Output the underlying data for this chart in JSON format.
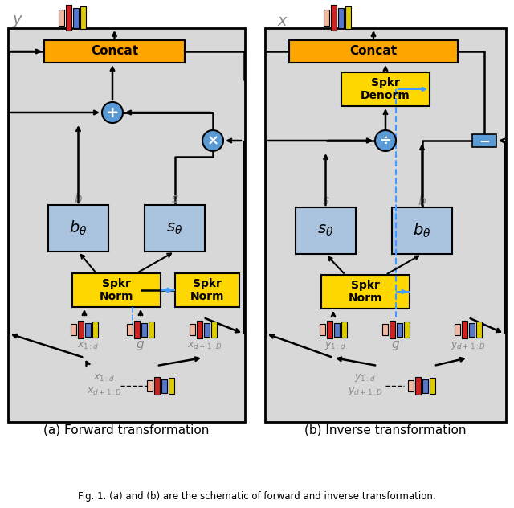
{
  "orange_box": "#FFA500",
  "yellow_box": "#FFD700",
  "blue_box": "#aac4e0",
  "blue_op_fill": "#5b9bd5",
  "bar_peach": "#f4b8a0",
  "bar_red": "#cc2222",
  "bar_blue": "#5577cc",
  "bar_yellow": "#ddcc00",
  "dashed_color": "#4499ff",
  "panel_bg": "#d8d8d8",
  "subtitle_a": "(a) Forward transformation",
  "subtitle_b": "(b) Inverse transformation",
  "fig_caption": "Fig. 1. (a) and (b) are the schematic of forward and inverse transformation."
}
